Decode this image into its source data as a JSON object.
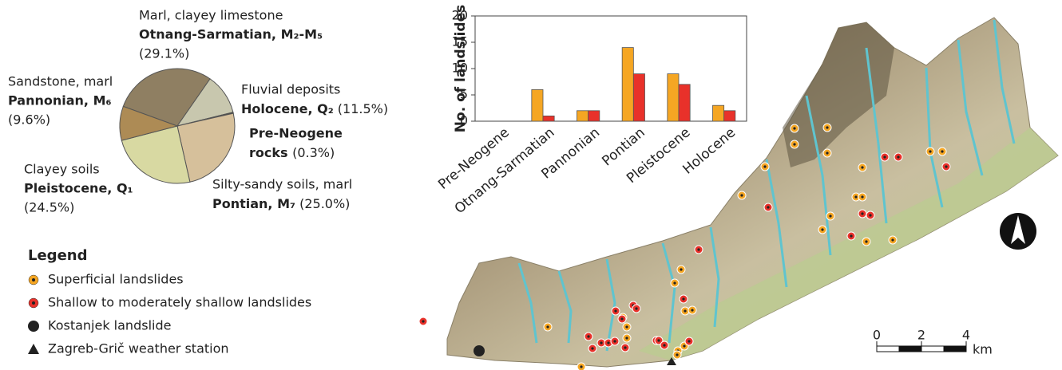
{
  "chart_data": [
    {
      "type": "pie",
      "categories": [
        "Otnang-Sarmatian, M₂-M₅",
        "Holocene, Q₂",
        "Pre-Neogene rocks",
        "Pontian, M₇",
        "Pleistocene, Q₁",
        "Pannonian, M₆"
      ],
      "descriptions": [
        "Marl, clayey limestone",
        "Fluvial deposits",
        null,
        "Silty-sandy soils, marl",
        "Clayey soils",
        "Sandstone, marl"
      ],
      "values": [
        29.1,
        11.5,
        0.3,
        25.0,
        24.5,
        9.6
      ],
      "value_labels": [
        "(29.1%)",
        "(11.5%)",
        "(0.3%)",
        "(25.0%)",
        "(24.5%)",
        "(9.6%)"
      ],
      "colors": [
        "#8f7f62",
        "#c8c7ae",
        "#3f3f36",
        "#d6c09b",
        "#d8d9a2",
        "#ad8b55"
      ]
    },
    {
      "type": "bar",
      "y_label": "No. of landslides",
      "categories": [
        "Pre-Neogene",
        "Otnang-Sarmatian",
        "Pannonian",
        "Pontian",
        "Pleistocene",
        "Holocene"
      ],
      "series": [
        {
          "name": "Superficial landslides",
          "color": "#f5a623",
          "values": [
            0,
            6,
            2,
            14,
            9,
            3
          ]
        },
        {
          "name": "Shallow to moderately shallow landslides",
          "color": "#e8312a",
          "values": [
            0,
            1,
            2,
            9,
            7,
            2
          ]
        }
      ],
      "ylim": [
        0,
        20
      ],
      "yticks": [
        0,
        5,
        10,
        15,
        20
      ]
    }
  ],
  "legend": {
    "title": "Legend",
    "items": [
      "Kostanjek landslide",
      "Zagreb-Grič weather station"
    ]
  },
  "scale_bar": {
    "ticks": [
      0,
      2,
      4
    ],
    "unit": "km"
  }
}
